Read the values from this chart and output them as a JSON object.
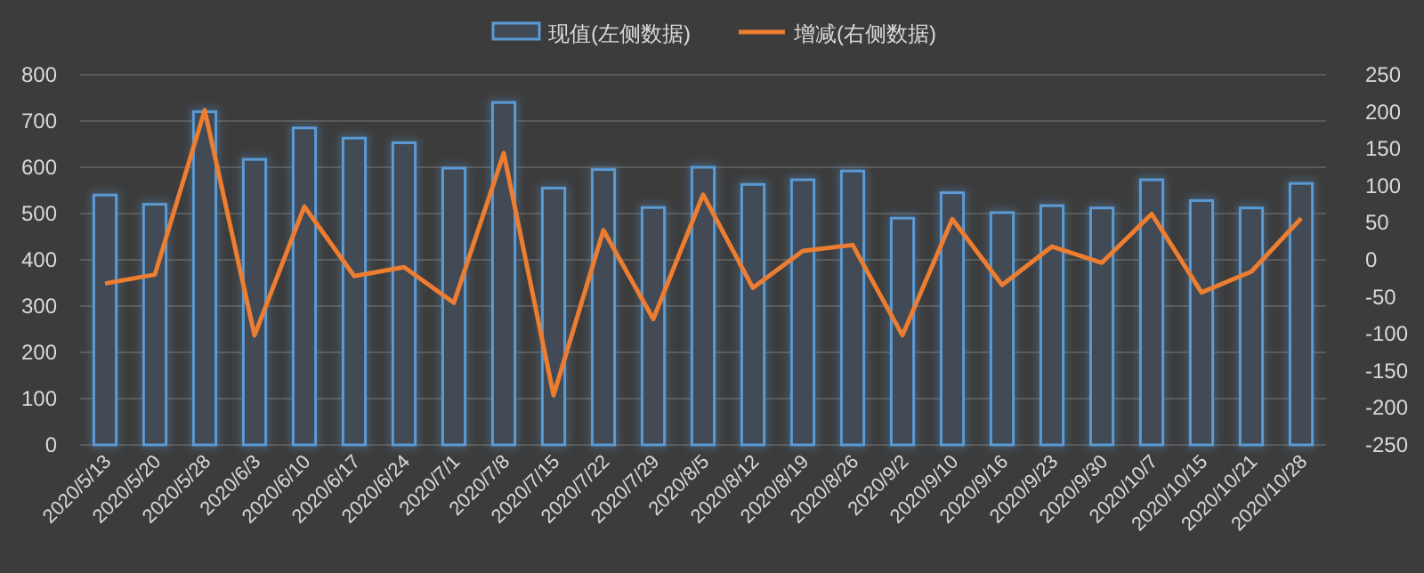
{
  "chart_data": {
    "type": "bar",
    "categories": [
      "2020/5/13",
      "2020/5/20",
      "2020/5/28",
      "2020/6/3",
      "2020/6/10",
      "2020/6/17",
      "2020/6/24",
      "2020/7/1",
      "2020/7/8",
      "2020/7/15",
      "2020/7/22",
      "2020/7/29",
      "2020/8/5",
      "2020/8/12",
      "2020/8/19",
      "2020/8/26",
      "2020/9/2",
      "2020/9/10",
      "2020/9/16",
      "2020/9/23",
      "2020/9/30",
      "2020/10/7",
      "2020/10/15",
      "2020/10/21",
      "2020/10/28"
    ],
    "series": [
      {
        "name": "现值(左侧数据)",
        "color": "#5b9bd5",
        "values": [
          540,
          520,
          720,
          617,
          685,
          663,
          653,
          598,
          740,
          555,
          595,
          513,
          600,
          563,
          573,
          592,
          490,
          545,
          502,
          517,
          512,
          573,
          528,
          512,
          565
        ]
      },
      {
        "name": "增减(右侧数据)",
        "type": "line",
        "axis": "y2",
        "color": "#ed7d31",
        "values": [
          -32,
          -20,
          202,
          -102,
          72,
          -22,
          -10,
          -58,
          144,
          -183,
          40,
          -80,
          88,
          -38,
          12,
          20,
          -102,
          55,
          -34,
          18,
          -4,
          62,
          -44,
          -16,
          56
        ]
      }
    ],
    "ylim": [
      0,
      800
    ],
    "yticks": [
      0,
      100,
      200,
      300,
      400,
      500,
      600,
      700,
      800
    ],
    "y2lim": [
      -250,
      250
    ],
    "y2ticks": [
      -250,
      -200,
      -150,
      -100,
      -50,
      0,
      50,
      100,
      150,
      200,
      250
    ],
    "grid": "y",
    "legend": "top",
    "marker": "none",
    "line_style": "solid"
  }
}
